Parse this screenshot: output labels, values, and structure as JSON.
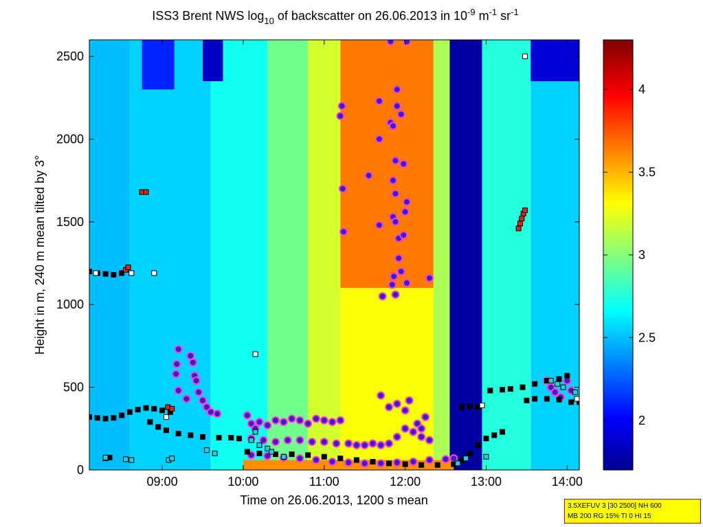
{
  "chart_data": {
    "type": "heatmap",
    "title": {
      "prefix": "ISS3 Brent NWS log",
      "log_base": "10",
      "middle": " of backscatter on 26.06.2013 in 10",
      "exp1": "-9",
      "unit1": " m",
      "exp2": "-1",
      "unit2": " sr",
      "exp3": "-1"
    },
    "xlabel": "Time on 26.06.2013, 1200 s mean",
    "ylabel": "Height in m, 240 m mean tilted by 3°",
    "xlim_hours": [
      8.1,
      14.15
    ],
    "ylim": [
      0,
      2600
    ],
    "x_ticks": [
      {
        "value": 9,
        "label": "09:00"
      },
      {
        "value": 10,
        "label": "10:00"
      },
      {
        "value": 11,
        "label": "11:00"
      },
      {
        "value": 12,
        "label": "12:00"
      },
      {
        "value": 13,
        "label": "13:00"
      },
      {
        "value": 14,
        "label": "14:00"
      }
    ],
    "y_ticks": [
      0,
      500,
      1000,
      1500,
      2000,
      2500
    ],
    "colorbar": {
      "range": [
        1.7,
        4.3
      ],
      "ticks": [
        2,
        2.5,
        3,
        3.5,
        4
      ],
      "colormap": [
        "#00008f",
        "#0000ff",
        "#00ffff",
        "#ffff00",
        "#ff0000",
        "#800000"
      ]
    },
    "background_regions": [
      {
        "t0": 8.1,
        "t1": 8.6,
        "h0": 0,
        "h1": 2600,
        "value": 2.5
      },
      {
        "t0": 8.6,
        "t1": 9.6,
        "h0": 0,
        "h1": 2600,
        "value": 2.55
      },
      {
        "t0": 9.6,
        "t1": 10.3,
        "h0": 0,
        "h1": 2600,
        "value": 2.7
      },
      {
        "t0": 10.3,
        "t1": 10.8,
        "h0": 0,
        "h1": 2600,
        "value": 2.95
      },
      {
        "t0": 10.8,
        "t1": 11.2,
        "h0": 0,
        "h1": 2600,
        "value": 3.2
      },
      {
        "t0": 11.2,
        "t1": 12.35,
        "h0": 1100,
        "h1": 2600,
        "value": 3.65
      },
      {
        "t0": 11.2,
        "t1": 12.35,
        "h0": 0,
        "h1": 1100,
        "value": 3.3
      },
      {
        "t0": 12.35,
        "t1": 12.55,
        "h0": 0,
        "h1": 2600,
        "value": 3.1
      },
      {
        "t0": 12.55,
        "t1": 12.95,
        "h0": 0,
        "h1": 2600,
        "value": 1.75
      },
      {
        "t0": 12.95,
        "t1": 13.55,
        "h0": 0,
        "h1": 2600,
        "value": 2.75
      },
      {
        "t0": 13.55,
        "t1": 14.15,
        "h0": 0,
        "h1": 2600,
        "value": 2.55
      },
      {
        "t0": 13.55,
        "t1": 14.15,
        "h0": 2350,
        "h1": 2600,
        "value": 1.9
      },
      {
        "t0": 8.75,
        "t1": 9.15,
        "h0": 2300,
        "h1": 2600,
        "value": 2.1
      },
      {
        "t0": 9.5,
        "t1": 9.75,
        "h0": 2350,
        "h1": 2600,
        "value": 1.85
      },
      {
        "t0": 10.0,
        "t1": 12.6,
        "h0": 0,
        "h1": 60,
        "value": 3.6
      }
    ],
    "series": [
      {
        "name": "aerosol-layer-circles",
        "marker": "circle",
        "points": [
          [
            11.22,
            2200
          ],
          [
            11.2,
            2140
          ],
          [
            11.23,
            1700
          ],
          [
            11.24,
            1440
          ],
          [
            11.55,
            1780
          ],
          [
            11.68,
            2230
          ],
          [
            11.68,
            2000
          ],
          [
            11.68,
            1480
          ],
          [
            11.72,
            1050
          ],
          [
            11.82,
            2590
          ],
          [
            11.82,
            2100
          ],
          [
            11.85,
            2080
          ],
          [
            11.9,
            2300
          ],
          [
            11.88,
            1870
          ],
          [
            11.85,
            1750
          ],
          [
            11.88,
            1670
          ],
          [
            11.85,
            1530
          ],
          [
            11.88,
            1500
          ],
          [
            11.92,
            1400
          ],
          [
            11.86,
            1170
          ],
          [
            11.84,
            1120
          ],
          [
            11.88,
            1060
          ],
          [
            11.92,
            1280
          ],
          [
            11.95,
            2150
          ],
          [
            11.98,
            1850
          ],
          [
            12.02,
            1620
          ],
          [
            12.0,
            1560
          ],
          [
            11.98,
            1420
          ],
          [
            12.02,
            1130
          ],
          [
            12.02,
            2590
          ],
          [
            11.9,
            2200
          ],
          [
            11.95,
            1200
          ],
          [
            12.3,
            1160
          ],
          [
            9.2,
            730
          ],
          [
            9.18,
            640
          ],
          [
            9.17,
            580
          ],
          [
            9.2,
            480
          ],
          [
            9.35,
            690
          ],
          [
            9.38,
            650
          ],
          [
            9.4,
            570
          ],
          [
            9.42,
            540
          ],
          [
            9.45,
            470
          ],
          [
            9.5,
            420
          ],
          [
            9.55,
            380
          ],
          [
            9.6,
            350
          ],
          [
            9.3,
            430
          ],
          [
            9.68,
            340
          ],
          [
            11.7,
            450
          ],
          [
            11.8,
            380
          ],
          [
            11.9,
            400
          ],
          [
            12.0,
            360
          ],
          [
            12.05,
            420
          ],
          [
            12.15,
            280
          ],
          [
            12.2,
            250
          ],
          [
            12.25,
            320
          ],
          [
            13.75,
            540
          ],
          [
            13.8,
            500
          ],
          [
            13.85,
            470
          ],
          [
            13.92,
            440
          ],
          [
            14.0,
            540
          ],
          [
            14.05,
            480
          ]
        ]
      },
      {
        "name": "aerosol-band",
        "marker": "circle",
        "points": [
          [
            10.05,
            330
          ],
          [
            10.1,
            280
          ],
          [
            10.15,
            250
          ],
          [
            10.2,
            290
          ],
          [
            10.3,
            270
          ],
          [
            10.4,
            300
          ],
          [
            10.5,
            290
          ],
          [
            10.6,
            310
          ],
          [
            10.7,
            300
          ],
          [
            10.8,
            280
          ],
          [
            10.9,
            310
          ],
          [
            11.0,
            300
          ],
          [
            11.1,
            290
          ],
          [
            11.2,
            300
          ],
          [
            11.3,
            160
          ],
          [
            11.4,
            150
          ],
          [
            11.5,
            150
          ],
          [
            11.6,
            160
          ],
          [
            11.7,
            150
          ],
          [
            11.8,
            160
          ],
          [
            11.9,
            200
          ],
          [
            12.0,
            250
          ],
          [
            12.1,
            230
          ],
          [
            12.2,
            200
          ],
          [
            12.3,
            180
          ],
          [
            10.1,
            190
          ],
          [
            10.25,
            180
          ],
          [
            10.4,
            170
          ],
          [
            10.55,
            180
          ],
          [
            10.7,
            180
          ],
          [
            10.85,
            170
          ],
          [
            11.0,
            170
          ],
          [
            11.15,
            160
          ],
          [
            10.1,
            90
          ],
          [
            10.3,
            85
          ],
          [
            10.5,
            75
          ],
          [
            10.7,
            70
          ],
          [
            10.9,
            60
          ],
          [
            11.1,
            50
          ],
          [
            11.3,
            45
          ],
          [
            11.5,
            40
          ],
          [
            11.7,
            40
          ],
          [
            11.9,
            45
          ],
          [
            12.1,
            50
          ],
          [
            12.3,
            60
          ],
          [
            12.5,
            65
          ],
          [
            12.6,
            70
          ]
        ]
      },
      {
        "name": "cloud-base-black",
        "marker": "square",
        "color": "#000000",
        "points": [
          [
            8.1,
            1200
          ],
          [
            8.2,
            1190
          ],
          [
            8.3,
            1185
          ],
          [
            8.4,
            1180
          ],
          [
            8.5,
            1190
          ],
          [
            8.1,
            320
          ],
          [
            8.2,
            315
          ],
          [
            8.3,
            310
          ],
          [
            8.4,
            315
          ],
          [
            8.5,
            330
          ],
          [
            8.6,
            350
          ],
          [
            8.7,
            365
          ],
          [
            8.8,
            375
          ],
          [
            8.9,
            370
          ],
          [
            9.0,
            360
          ],
          [
            9.1,
            350
          ],
          [
            8.85,
            290
          ],
          [
            8.95,
            260
          ],
          [
            9.05,
            240
          ],
          [
            9.2,
            220
          ],
          [
            9.35,
            210
          ],
          [
            9.5,
            200
          ],
          [
            9.7,
            195
          ],
          [
            9.85,
            195
          ],
          [
            9.95,
            190
          ],
          [
            10.05,
            110
          ],
          [
            10.2,
            100
          ],
          [
            10.4,
            95
          ],
          [
            10.6,
            95
          ],
          [
            10.8,
            90
          ],
          [
            11.0,
            80
          ],
          [
            11.2,
            70
          ],
          [
            11.4,
            60
          ],
          [
            11.6,
            50
          ],
          [
            11.8,
            40
          ],
          [
            12.0,
            35
          ],
          [
            12.2,
            30
          ],
          [
            12.4,
            30
          ],
          [
            12.6,
            35
          ],
          [
            12.7,
            60
          ],
          [
            12.8,
            100
          ],
          [
            12.9,
            150
          ],
          [
            13.0,
            190
          ],
          [
            13.1,
            210
          ],
          [
            13.2,
            230
          ],
          [
            12.7,
            380
          ],
          [
            12.8,
            385
          ],
          [
            12.9,
            380
          ],
          [
            13.05,
            480
          ],
          [
            13.2,
            485
          ],
          [
            13.3,
            490
          ],
          [
            13.45,
            500
          ],
          [
            13.6,
            520
          ],
          [
            13.75,
            540
          ],
          [
            13.9,
            550
          ],
          [
            14.0,
            570
          ],
          [
            13.5,
            420
          ],
          [
            13.6,
            430
          ],
          [
            13.75,
            430
          ],
          [
            13.9,
            425
          ],
          [
            14.05,
            410
          ],
          [
            14.15,
            410
          ],
          [
            8.3,
            70
          ],
          [
            8.35,
            75
          ]
        ]
      },
      {
        "name": "cloud-base-red",
        "marker": "square",
        "color": "#d42a1a",
        "points": [
          [
            8.75,
            1680
          ],
          [
            8.8,
            1680
          ],
          [
            8.55,
            1210
          ],
          [
            8.58,
            1225
          ],
          [
            9.07,
            380
          ],
          [
            9.12,
            370
          ],
          [
            13.4,
            1460
          ],
          [
            13.42,
            1490
          ],
          [
            13.44,
            1520
          ],
          [
            13.46,
            1550
          ],
          [
            13.48,
            1570
          ]
        ]
      },
      {
        "name": "cloud-base-cyan",
        "marker": "square",
        "color": "#22cfe0",
        "points": [
          [
            8.3,
            75
          ],
          [
            8.55,
            65
          ],
          [
            8.62,
            60
          ],
          [
            9.08,
            60
          ],
          [
            9.12,
            70
          ],
          [
            9.55,
            120
          ],
          [
            9.65,
            100
          ],
          [
            10.1,
            180
          ],
          [
            10.15,
            230
          ],
          [
            10.2,
            150
          ],
          [
            10.3,
            130
          ],
          [
            10.35,
            110
          ],
          [
            10.5,
            80
          ],
          [
            12.65,
            40
          ],
          [
            12.75,
            70
          ],
          [
            13.0,
            80
          ],
          [
            13.8,
            540
          ],
          [
            13.88,
            520
          ],
          [
            13.95,
            500
          ],
          [
            14.1,
            470
          ]
        ]
      },
      {
        "name": "cloud-base-white",
        "marker": "square",
        "color": "#ffffff",
        "points": [
          [
            8.18,
            1190
          ],
          [
            8.62,
            1190
          ],
          [
            8.9,
            1190
          ],
          [
            9.05,
            320
          ],
          [
            10.15,
            700
          ],
          [
            13.48,
            2500
          ],
          [
            12.95,
            390
          ],
          [
            14.12,
            430
          ]
        ]
      }
    ]
  },
  "info_box": {
    "line1": "3.5XEFUV 3 [30 2500] NH 600",
    "line2": "MB 200 RG 15% TI 0 HI 15"
  }
}
